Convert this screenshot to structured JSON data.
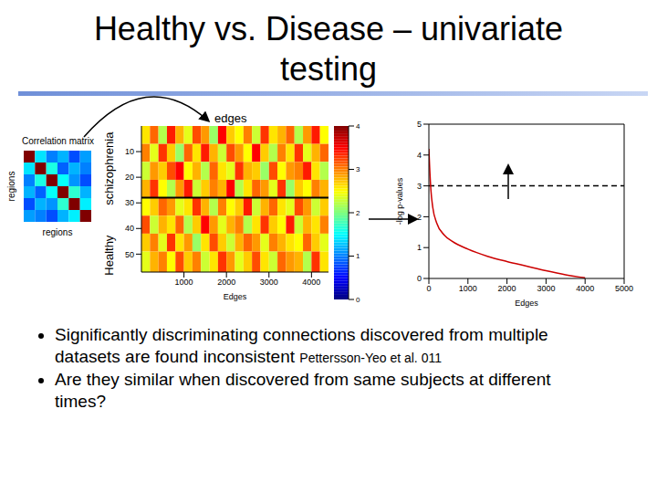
{
  "slide": {
    "title_lines": [
      "Healthy vs. Disease – univariate",
      "testing"
    ],
    "bullets": [
      "Significantly discriminating connections discovered from multiple datasets are found inconsistent",
      "Are they similar when discovered from same subjects at different times?"
    ],
    "citation": "Pettersson-Yeo et al. 011"
  },
  "chart_data": [
    {
      "type": "heatmap",
      "annotation": "edges",
      "xlabel": "Edges",
      "xlim": [
        0,
        4400
      ],
      "xticks": [
        1000,
        2000,
        3000,
        4000
      ],
      "ylim": [
        0,
        57
      ],
      "yticks": [
        10,
        20,
        30,
        40,
        50
      ],
      "group_labels": [
        "schizophrenia",
        "Healthy"
      ],
      "group_boundary": 28,
      "x_edges": [
        0,
        200,
        400,
        600,
        800,
        1000,
        1200,
        1400,
        1600,
        1800,
        2000,
        2200,
        2400,
        2600,
        2800,
        3000,
        3200,
        3400,
        3600,
        3800,
        4000,
        4200,
        4400
      ],
      "y_edges": [
        0,
        7,
        14,
        21,
        28,
        35,
        42,
        49,
        57
      ],
      "cells": [
        [
          2.6,
          3.1,
          2.2,
          3.4,
          2.8,
          2.4,
          3.2,
          2.9,
          2.1,
          3.5,
          2.7,
          2.5,
          3.0,
          2.3,
          3.3,
          2.6,
          2.8,
          3.1,
          2.2,
          2.9,
          3.4,
          2.5
        ],
        [
          3.0,
          2.4,
          3.3,
          2.7,
          2.1,
          3.1,
          2.6,
          3.4,
          2.8,
          2.3,
          3.2,
          2.9,
          2.5,
          3.5,
          2.7,
          2.2,
          3.0,
          2.6,
          3.3,
          2.4,
          2.8,
          3.1
        ],
        [
          2.3,
          2.9,
          2.7,
          3.2,
          3.5,
          2.5,
          2.8,
          2.2,
          3.1,
          2.6,
          2.4,
          3.3,
          2.8,
          2.7,
          2.1,
          3.2,
          2.5,
          2.9,
          3.0,
          3.4,
          2.6,
          2.2
        ],
        [
          2.8,
          3.3,
          2.5,
          2.2,
          2.9,
          3.4,
          2.3,
          2.7,
          3.0,
          2.8,
          3.5,
          2.2,
          2.6,
          3.1,
          2.9,
          2.4,
          3.3,
          2.1,
          2.7,
          2.5,
          3.0,
          2.8
        ],
        [
          2.5,
          2.7,
          3.1,
          2.9,
          2.4,
          2.6,
          3.3,
          2.8,
          2.2,
          3.0,
          2.5,
          2.7,
          3.4,
          2.3,
          2.8,
          3.1,
          2.6,
          2.4,
          3.2,
          2.9,
          2.3,
          2.7
        ],
        [
          3.2,
          2.3,
          2.8,
          2.6,
          3.1,
          2.2,
          2.7,
          3.5,
          2.9,
          2.4,
          2.8,
          3.0,
          2.2,
          2.6,
          3.3,
          2.7,
          2.5,
          3.4,
          2.3,
          2.8,
          2.6,
          3.0
        ],
        [
          2.7,
          3.0,
          2.4,
          3.3,
          2.6,
          2.9,
          2.1,
          2.6,
          3.2,
          2.7,
          2.3,
          2.8,
          3.1,
          2.9,
          2.4,
          3.0,
          2.8,
          2.6,
          2.5,
          3.1,
          2.7,
          2.4
        ],
        [
          2.4,
          2.8,
          3.0,
          2.5,
          3.2,
          2.7,
          3.0,
          2.3,
          2.6,
          3.3,
          2.9,
          2.4,
          2.7,
          3.2,
          2.6,
          2.3,
          3.1,
          2.9,
          2.8,
          2.2,
          3.3,
          2.6
        ]
      ],
      "colorbar_range": [
        0,
        4
      ],
      "colorbar_ticks": [
        0,
        1,
        2,
        3,
        4
      ]
    },
    {
      "type": "line",
      "xlabel": "Edges",
      "ylabel": "-log p-values",
      "x": [
        0,
        20,
        50,
        100,
        200,
        400,
        600,
        1000,
        1500,
        2000,
        2500,
        3000,
        3500,
        4000
      ],
      "values": [
        4.2,
        3.6,
        2.9,
        2.3,
        1.8,
        1.4,
        1.2,
        0.95,
        0.72,
        0.55,
        0.4,
        0.25,
        0.12,
        0.02
      ],
      "color": "#cc0000",
      "xlim": [
        0,
        5000
      ],
      "xticks": [
        0,
        1000,
        2000,
        3000,
        4000,
        5000
      ],
      "ylim": [
        0,
        5
      ],
      "yticks": [
        0,
        1,
        2,
        3,
        4,
        5
      ],
      "threshold": 3
    },
    {
      "type": "heatmap",
      "title": "Correlation matrix",
      "xlabel": "regions",
      "ylabel": "regions",
      "tick_labels": false,
      "cells": [
        [
          1.0,
          0.35,
          0.25,
          0.3,
          0.2,
          0.28
        ],
        [
          0.35,
          1.0,
          0.4,
          0.22,
          0.3,
          0.25
        ],
        [
          0.25,
          0.4,
          1.0,
          0.38,
          0.27,
          0.2
        ],
        [
          0.3,
          0.22,
          0.38,
          1.0,
          0.42,
          0.3
        ],
        [
          0.2,
          0.3,
          0.27,
          0.42,
          1.0,
          0.36
        ],
        [
          0.28,
          0.25,
          0.2,
          0.3,
          0.36,
          1.0
        ]
      ],
      "colorbar_range": [
        0,
        1
      ]
    }
  ]
}
